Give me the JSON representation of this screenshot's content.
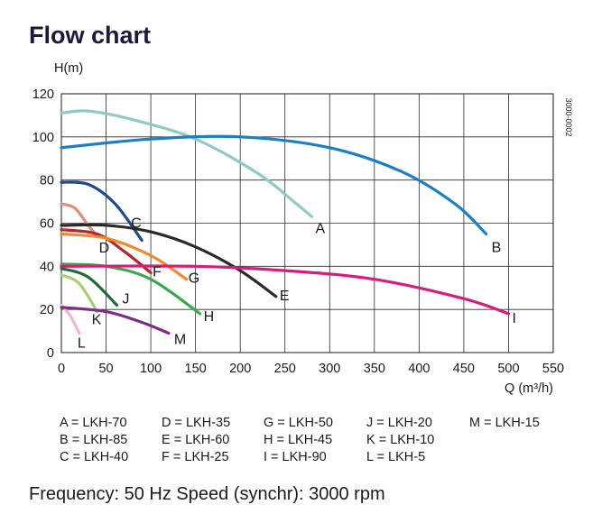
{
  "title": "Flow chart",
  "footer": "Frequency: 50 Hz Speed (synchr): 3000 rpm",
  "chart_data": {
    "type": "line",
    "title": "Flow chart",
    "xlabel": "Q (m³/h)",
    "ylabel": "H(m)",
    "xlim": [
      0,
      550
    ],
    "ylim": [
      0,
      120
    ],
    "xticks": [
      0,
      50,
      100,
      150,
      200,
      250,
      300,
      350,
      400,
      450,
      500,
      550
    ],
    "yticks": [
      0,
      20,
      40,
      60,
      80,
      100,
      120
    ],
    "grid": true,
    "side_code": "3000-0002",
    "series": [
      {
        "name": "A",
        "color": "#8fcac3",
        "x": [
          0,
          30,
          80,
          150,
          220,
          260,
          280
        ],
        "y": [
          111,
          112,
          108,
          99,
          83,
          70,
          63
        ]
      },
      {
        "name": "B",
        "color": "#1a7fc4",
        "x": [
          0,
          100,
          200,
          300,
          380,
          440,
          475
        ],
        "y": [
          95,
          99,
          100,
          95,
          84,
          69,
          55
        ]
      },
      {
        "name": "C",
        "color": "#1e4b8c",
        "x": [
          0,
          30,
          60,
          90
        ],
        "y": [
          79,
          78,
          69,
          52
        ]
      },
      {
        "name": "D",
        "color": "#e08c7a",
        "x": [
          0,
          15,
          30,
          40
        ],
        "y": [
          69,
          67,
          59,
          54
        ]
      },
      {
        "name": "E",
        "color": "#2a2a2a",
        "x": [
          0,
          50,
          100,
          150,
          200,
          240
        ],
        "y": [
          59,
          59,
          56,
          49,
          38,
          26
        ]
      },
      {
        "name": "F",
        "color": "#b3282e",
        "x": [
          0,
          40,
          70,
          100
        ],
        "y": [
          57,
          55,
          47,
          37
        ]
      },
      {
        "name": "G",
        "color": "#ef8a2d",
        "x": [
          0,
          50,
          100,
          140
        ],
        "y": [
          55,
          53,
          45,
          34
        ]
      },
      {
        "name": "H",
        "color": "#3aa84a",
        "x": [
          0,
          50,
          100,
          155
        ],
        "y": [
          41,
          40,
          34,
          18
        ]
      },
      {
        "name": "I",
        "color": "#d11f7a",
        "x": [
          0,
          150,
          250,
          350,
          450,
          500
        ],
        "y": [
          40,
          40,
          38,
          34,
          25,
          18
        ]
      },
      {
        "name": "J",
        "color": "#1f6b37",
        "x": [
          0,
          30,
          62
        ],
        "y": [
          39,
          35,
          22
        ]
      },
      {
        "name": "K",
        "color": "#a6cf72",
        "x": [
          0,
          20,
          40
        ],
        "y": [
          36,
          32,
          19
        ]
      },
      {
        "name": "L",
        "color": "#f2b3cc",
        "x": [
          0,
          10,
          20
        ],
        "y": [
          22,
          17,
          9
        ]
      },
      {
        "name": "M",
        "color": "#7b2f84",
        "x": [
          0,
          50,
          90,
          120
        ],
        "y": [
          21,
          19,
          14,
          9
        ]
      }
    ],
    "legend_entries": [
      "A = LKH-70",
      "D = LKH-35",
      "G = LKH-50",
      "J = LKH-20",
      "M = LKH-15",
      "B = LKH-85",
      "E = LKH-60",
      "H = LKH-45",
      "K = LKH-10",
      "",
      "C = LKH-40",
      "F = LKH-25",
      "I = LKH-90",
      "L = LKH-5",
      ""
    ]
  }
}
